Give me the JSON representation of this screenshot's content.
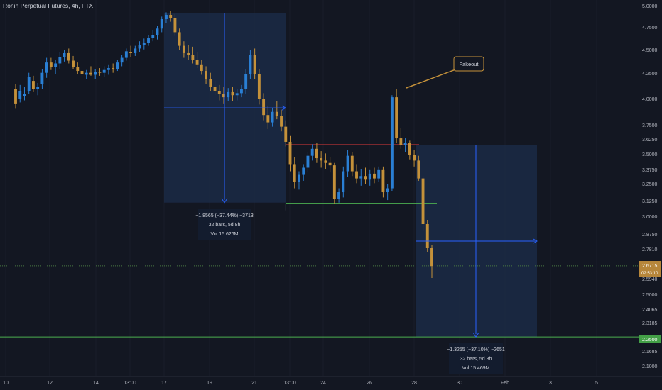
{
  "title": "Ronin Perpetual Futures, 4h, FTX",
  "colors": {
    "background": "#131722",
    "up": "#2a7fd4",
    "down": "#c4913a",
    "measure": "#2962ff",
    "resistance": "#e03a3a",
    "support": "#4caf50",
    "callout": "#c4913a"
  },
  "chart_data": {
    "type": "candlestick",
    "ylim": [
      2.05,
      5.02
    ],
    "y_ticks": [
      "5.0000",
      "4.7500",
      "4.5000",
      "4.2500",
      "4.0000",
      "3.7500",
      "3.6250",
      "3.5000",
      "3.3750",
      "3.2500",
      "3.1250",
      "3.0000",
      "2.8750",
      "2.7810",
      "2.5940",
      "2.5000",
      "2.4065",
      "2.3185",
      "2.1685",
      "2.1000"
    ],
    "x_ticks": [
      "10",
      "12",
      "14",
      "13:00",
      "17",
      "19",
      "21",
      "13:00",
      "24",
      "26",
      "28",
      "30",
      "Feb",
      "3",
      "5"
    ],
    "current_price": "2.6715",
    "countdown": "02:53:10",
    "target_price": "2.2500",
    "resistance_level": 3.585,
    "support_level": 3.105,
    "annotation": "Fakeout",
    "measure_1": {
      "from": 4.92,
      "to": 3.11,
      "line1": "−1.8565 (−37.44%) −3713",
      "line2": "32 bars, 5d 8h",
      "line3": "Vol 15.626M"
    },
    "measure_2": {
      "from": 3.58,
      "to": 2.25,
      "line1": "−1.3255 (−37.10%) −2651",
      "line2": "32 bars, 5d 8h",
      "line3": "Vol 15.469M"
    }
  }
}
